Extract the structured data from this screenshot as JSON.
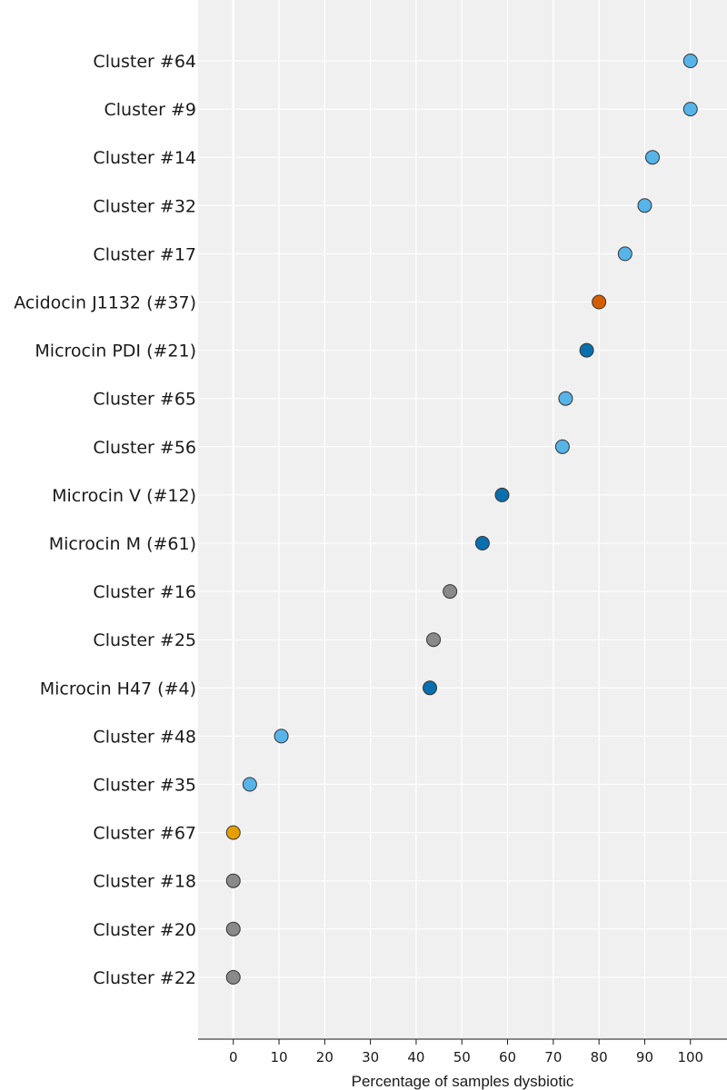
{
  "chart_data": {
    "type": "scatter",
    "title": "",
    "xlabel": "Percentage of samples dysbiotic",
    "ylabel": "",
    "xlim": [
      -7.7,
      108
    ],
    "xticks": [
      0,
      10,
      20,
      30,
      40,
      50,
      60,
      70,
      80,
      90,
      100
    ],
    "grid": true,
    "colors": {
      "light_blue": "#56b4e9",
      "dark_blue": "#0a6fae",
      "vermilion": "#d55e00",
      "orange": "#e69f00",
      "gray": "#8a8a8a",
      "background": "#f0f0f0"
    },
    "points": [
      {
        "label": "Cluster #64",
        "value": 100,
        "color": "light_blue"
      },
      {
        "label": "Cluster #9",
        "value": 100,
        "color": "light_blue"
      },
      {
        "label": "Cluster #14",
        "value": 91.7,
        "color": "light_blue"
      },
      {
        "label": "Cluster #32",
        "value": 90,
        "color": "light_blue"
      },
      {
        "label": "Cluster #17",
        "value": 85.7,
        "color": "light_blue"
      },
      {
        "label": "Acidocin J1132 (#37)",
        "value": 80,
        "color": "vermilion"
      },
      {
        "label": "Microcin PDI (#21)",
        "value": 77.3,
        "color": "dark_blue"
      },
      {
        "label": "Cluster #65",
        "value": 72.7,
        "color": "light_blue"
      },
      {
        "label": "Cluster #56",
        "value": 72,
        "color": "light_blue"
      },
      {
        "label": "Microcin V (#12)",
        "value": 58.8,
        "color": "dark_blue"
      },
      {
        "label": "Microcin M (#61)",
        "value": 54.5,
        "color": "dark_blue"
      },
      {
        "label": "Cluster #16",
        "value": 47.4,
        "color": "gray"
      },
      {
        "label": "Cluster #25",
        "value": 43.8,
        "color": "gray"
      },
      {
        "label": "Microcin H47 (#4)",
        "value": 43,
        "color": "dark_blue"
      },
      {
        "label": "Cluster #48",
        "value": 10.5,
        "color": "light_blue"
      },
      {
        "label": "Cluster #35",
        "value": 3.6,
        "color": "light_blue"
      },
      {
        "label": "Cluster #67",
        "value": 0,
        "color": "orange"
      },
      {
        "label": "Cluster #18",
        "value": 0,
        "color": "gray"
      },
      {
        "label": "Cluster #20",
        "value": 0,
        "color": "gray"
      },
      {
        "label": "Cluster #22",
        "value": 0,
        "color": "gray"
      }
    ]
  }
}
